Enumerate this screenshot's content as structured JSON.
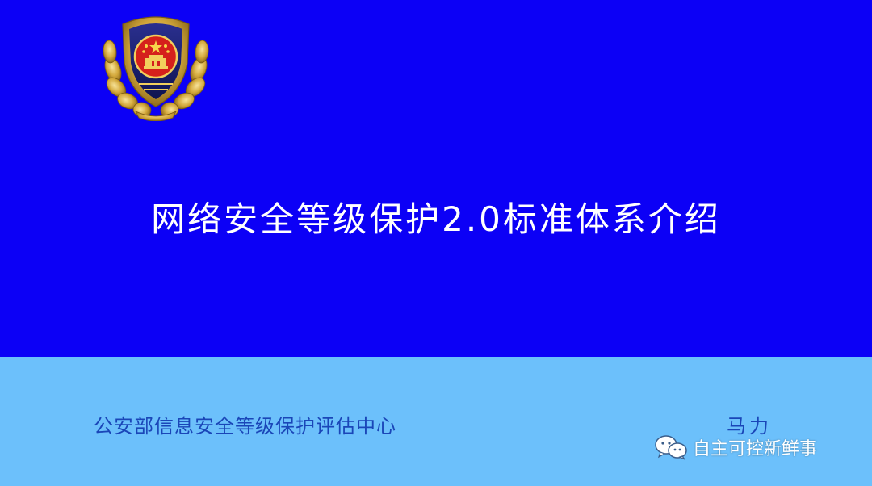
{
  "slide": {
    "title": "网络安全等级保护2.0标准体系介绍",
    "organization": "公安部信息安全等级保护评估中心",
    "author": "马力",
    "watermark": "自主可控新鲜事"
  },
  "icons": {
    "emblem": "police-emblem-icon",
    "watermark": "wechat-icon"
  },
  "colors": {
    "top_background": "#0c00f6",
    "bottom_background": "#6cc0fb",
    "title_text": "#ffffff",
    "footer_text": "#1a46b8"
  }
}
